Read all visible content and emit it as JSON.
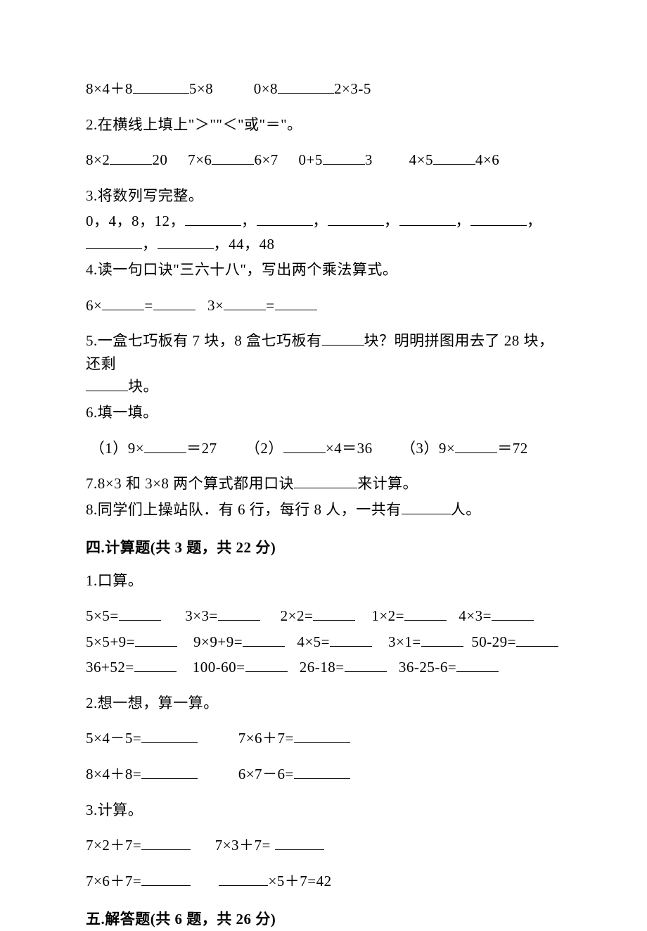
{
  "q1l": "8×4＋8",
  "q1m": "5×8",
  "q1r": "0×8",
  "q1e": "2×3-5",
  "q2": "2.在横线上填上\"＞\"\"＜\"或\"＝\"。",
  "q2a": "8×2",
  "q2av": "20",
  "q2b": "7×6",
  "q2bv": "6×7",
  "q2c": "0+5",
  "q2cv": "3",
  "q2d": "4×5",
  "q2dv": "4×6",
  "q3": "3.将数列写完整。",
  "q3seq1": "0，4，8，12，",
  "q3seq2": "，44，48",
  "q4": "4.读一句口诀\"三六十八\"，写出两个乘法算式。",
  "q4a": "6×",
  "q4b": "3×",
  "q5a": "5.一盒七巧板有 7 块，8 盒七巧板有",
  "q5b": "块？明明拼图用去了 28 块，还剩",
  "q5c": "块。",
  "q6": "6.填一填。",
  "q6a": "（1）9×",
  "q6av": "＝27",
  "q6b": "（2）",
  "q6bv": "×4＝36",
  "q6c": "（3）9×",
  "q6cv": "＝72",
  "q7a": "7.8×3 和 3×8 两个算式都用口诀",
  "q7b": "来计算。",
  "q8a": "8.同学们上操站队．有 6 行，每行 8 人，一共有",
  "q8b": "人。",
  "h4": "四.计算题(共 3 题，共 22 分)",
  "c1": "1.口算。",
  "c1r1a": "5×5=",
  "c1r1b": "3×3=",
  "c1r1c": "2×2=",
  "c1r1d": "1×2=",
  "c1r1e": "4×3=",
  "c1r2a": "5×5+9=",
  "c1r2b": "9×9+9=",
  "c1r2c": "4×5=",
  "c1r2d": "3×1=",
  "c1r2e": "50-29=",
  "c1r3a": "36+52=",
  "c1r3b": "100-60=",
  "c1r3c": "26-18=",
  "c1r3d": "36-25-6=",
  "c2": "2.想一想，算一算。",
  "c2a": "5×4－5=",
  "c2b": "7×6＋7=",
  "c2c": "8×4＋8=",
  "c2d": "6×7－6=",
  "c3": "3.计算。",
  "c3a": "7×2＋7=",
  "c3b": "7×3＋7=",
  "c3c": "7×6＋7=",
  "c3d": "×5＋7=42",
  "h5": "五.解答题(共 6 题，共 26 分)"
}
